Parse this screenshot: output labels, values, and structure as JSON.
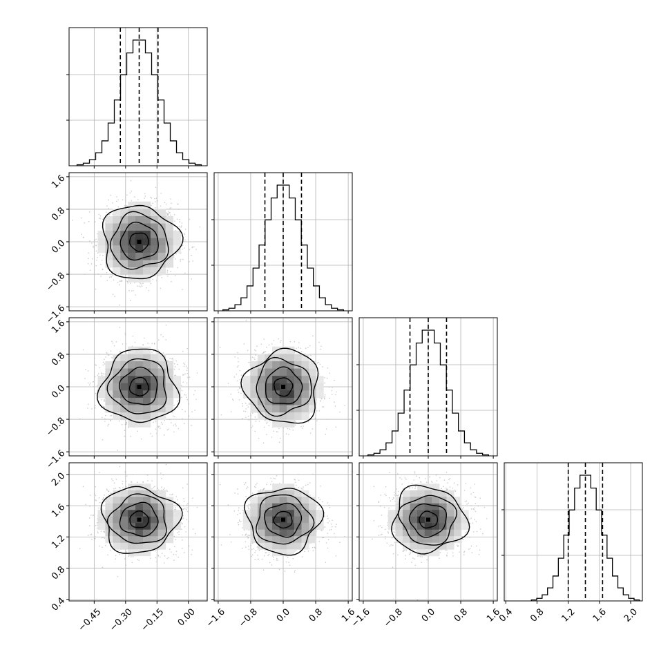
{
  "chart_data": {
    "type": "corner",
    "n_params": 4,
    "params": [
      {
        "range": [
          -0.57,
          0.09
        ],
        "ticks": [
          -0.45,
          -0.3,
          -0.15,
          0.0
        ],
        "tick_labels": [
          "−0.45",
          "−0.30",
          "−0.15",
          "0.00"
        ],
        "mean": -0.235,
        "sd": 0.09,
        "quantiles": [
          -0.325,
          -0.235,
          -0.145
        ]
      },
      {
        "range": [
          -1.7,
          1.7
        ],
        "ticks": [
          -1.6,
          -0.8,
          0.0,
          0.8,
          1.6
        ],
        "tick_labels": [
          "−1.6",
          "−0.8",
          "0.0",
          "0.8",
          "1.6"
        ],
        "mean": 0.0,
        "sd": 0.45,
        "quantiles": [
          -0.45,
          0.0,
          0.45
        ]
      },
      {
        "range": [
          -1.7,
          1.7
        ],
        "ticks": [
          -1.6,
          -0.8,
          0.0,
          0.8,
          1.6
        ],
        "tick_labels": [
          "−1.6",
          "−0.8",
          "0.0",
          "0.8",
          "1.6"
        ],
        "mean": 0.0,
        "sd": 0.45,
        "quantiles": [
          -0.45,
          0.0,
          0.45
        ]
      },
      {
        "range": [
          0.38,
          2.15
        ],
        "ticks": [
          0.4,
          0.8,
          1.2,
          1.6,
          2.0
        ],
        "tick_labels": [
          "0.4",
          "0.8",
          "1.2",
          "1.6",
          "2.0"
        ],
        "mean": 1.42,
        "sd": 0.21,
        "quantiles": [
          1.2,
          1.42,
          1.64
        ]
      }
    ],
    "hist_bins": 20,
    "quantile_levels": [
      0.16,
      0.5,
      0.84
    ],
    "contour_levels": [
      "0.5-sigma",
      "1-sigma",
      "1.5-sigma",
      "2-sigma"
    ],
    "grid": true,
    "legend": "none",
    "colors": {
      "line": "#000000",
      "points": "#b8b8b8",
      "density_dark": "#000000",
      "density_light": "#ffffff",
      "grid": "#b0b0b0"
    }
  }
}
